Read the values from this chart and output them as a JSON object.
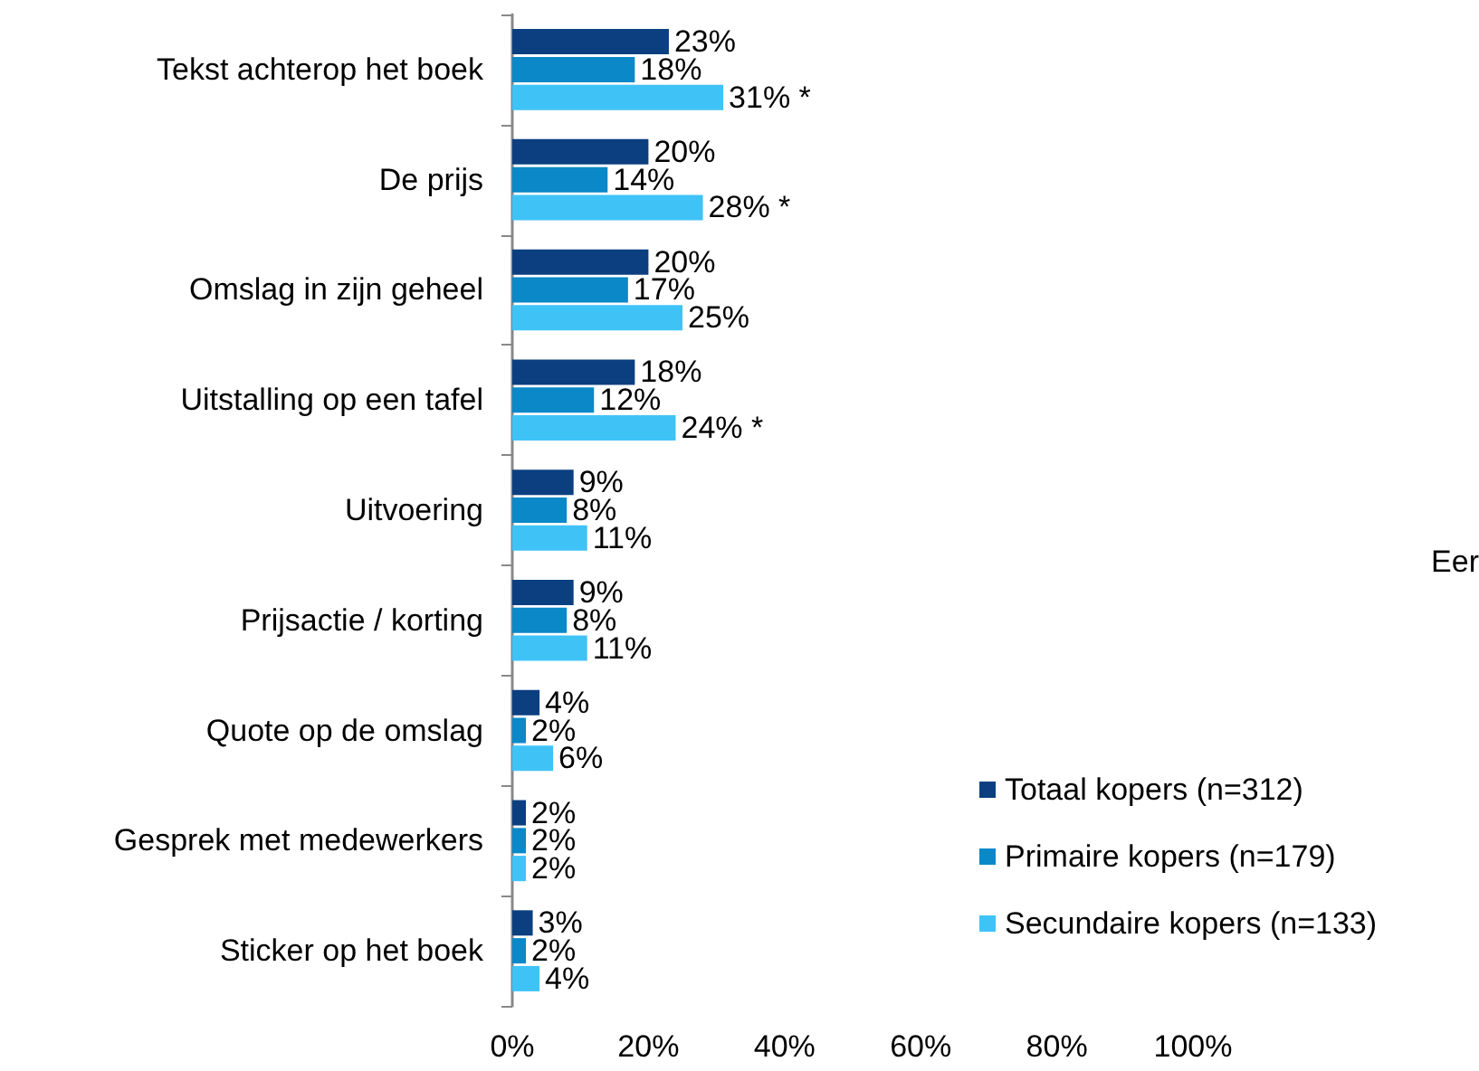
{
  "chart_data": {
    "type": "bar",
    "orientation": "horizontal",
    "categories": [
      "Tekst achterop het boek",
      "De prijs",
      "Omslag in zijn geheel",
      "Uitstalling op een tafel",
      "Uitvoering",
      "Prijsactie / korting",
      "Quote op de omslag",
      "Gesprek met medewerkers",
      "Sticker op het boek"
    ],
    "series": [
      {
        "name": "Totaal kopers (n=312)",
        "color": "#0b3f80",
        "values": [
          23,
          20,
          20,
          18,
          9,
          9,
          4,
          2,
          3
        ],
        "value_labels": [
          "23%",
          "20%",
          "20%",
          "18%",
          "9%",
          "9%",
          "4%",
          "2%",
          "3%"
        ]
      },
      {
        "name": "Primaire kopers (n=179)",
        "color": "#0a88c8",
        "values": [
          18,
          14,
          17,
          12,
          8,
          8,
          2,
          2,
          2
        ],
        "value_labels": [
          "18%",
          "14%",
          "17%",
          "12%",
          "8%",
          "8%",
          "2%",
          "2%",
          "2%"
        ]
      },
      {
        "name": "Secundaire kopers (n=133)",
        "color": "#3fc3f7",
        "values": [
          31,
          28,
          25,
          24,
          11,
          11,
          6,
          2,
          4
        ],
        "value_labels": [
          "31% *",
          "28% *",
          "25%",
          "24% *",
          "11%",
          "11%",
          "6%",
          "2%",
          "4%"
        ]
      }
    ],
    "xlim": [
      0,
      100
    ],
    "xticks": [
      {
        "value": 0,
        "label": "0%"
      },
      {
        "value": 20,
        "label": "20%"
      },
      {
        "value": 40,
        "label": "40%"
      },
      {
        "value": 60,
        "label": "60%"
      },
      {
        "value": 80,
        "label": "80%"
      },
      {
        "value": 100,
        "label": "100%"
      }
    ],
    "grid": false,
    "legend": "bottom right",
    "annotations": [
      "Eer"
    ]
  }
}
